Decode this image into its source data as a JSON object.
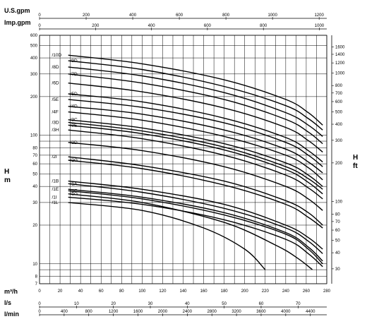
{
  "chart_data": {
    "type": "line",
    "title": "",
    "x_axes": {
      "usgpm": {
        "unit": "U.S.gpm",
        "ticks": [
          0,
          200,
          400,
          600,
          800,
          1000,
          1200
        ]
      },
      "impgpm": {
        "unit": "Imp.gpm",
        "ticks": [
          0,
          200,
          400,
          600,
          800,
          1000
        ]
      },
      "m3h": {
        "unit": "m³/h",
        "ticks": [
          0,
          20,
          40,
          60,
          80,
          100,
          120,
          140,
          160,
          180,
          200,
          220,
          240,
          260,
          280
        ],
        "range": [
          0,
          280
        ]
      },
      "ls": {
        "unit": "l/s",
        "ticks": [
          0,
          10,
          20,
          30,
          40,
          50,
          60,
          70
        ]
      },
      "lmin": {
        "unit": "l/min",
        "ticks": [
          0,
          400,
          800,
          1200,
          1600,
          2000,
          2400,
          2800,
          3200,
          3600,
          4000,
          4400
        ]
      }
    },
    "y_left": {
      "label": "H",
      "unit": "m",
      "scale": "log",
      "range": [
        7,
        600
      ],
      "ticks": [
        7,
        8,
        10,
        20,
        30,
        40,
        50,
        60,
        70,
        80,
        100,
        200,
        300,
        400,
        500,
        600
      ]
    },
    "y_right": {
      "label": "H",
      "unit": "ft",
      "scale": "log",
      "ticks": [
        30,
        40,
        50,
        60,
        70,
        80,
        100,
        200,
        300,
        400,
        500,
        600,
        700,
        800,
        1000,
        1200,
        1400,
        1600
      ]
    },
    "grid": true,
    "series": [
      {
        "name": "/10D",
        "x": [
          28,
          100,
          180,
          240,
          262,
          276
        ],
        "y": [
          420,
          360,
          270,
          190,
          150,
          120
        ]
      },
      {
        "name": "/9D",
        "x": [
          28,
          100,
          180,
          240,
          262,
          276
        ],
        "y": [
          380,
          325,
          240,
          170,
          135,
          110
        ]
      },
      {
        "name": "/8D",
        "x": [
          28,
          100,
          180,
          240,
          262,
          276
        ],
        "y": [
          340,
          290,
          215,
          150,
          120,
          98
        ]
      },
      {
        "name": "/7D",
        "x": [
          28,
          100,
          180,
          240,
          262,
          276
        ],
        "y": [
          300,
          255,
          190,
          133,
          106,
          86
        ]
      },
      {
        "name": "/6D",
        "x": [
          28,
          100,
          180,
          240,
          262,
          276
        ],
        "y": [
          255,
          218,
          163,
          115,
          91,
          74
        ]
      },
      {
        "name": "/5D",
        "x": [
          28,
          100,
          180,
          240,
          262,
          276
        ],
        "y": [
          210,
          182,
          136,
          96,
          76,
          62
        ]
      },
      {
        "name": "/5E",
        "x": [
          28,
          100,
          180,
          240,
          262,
          276
        ],
        "y": [
          190,
          165,
          125,
          88,
          70,
          57
        ]
      },
      {
        "name": "/4D",
        "x": [
          28,
          100,
          180,
          240,
          262,
          276
        ],
        "y": [
          168,
          146,
          110,
          78,
          62,
          51
        ]
      },
      {
        "name": "/4F",
        "x": [
          28,
          100,
          180,
          240,
          262,
          276
        ],
        "y": [
          152,
          131,
          98,
          70,
          56,
          45
        ]
      },
      {
        "name": "/3C",
        "x": [
          28,
          100,
          180,
          240,
          262,
          276
        ],
        "y": [
          132,
          114,
          86,
          61,
          49,
          40
        ]
      },
      {
        "name": "/3D",
        "x": [
          28,
          100,
          180,
          240,
          262,
          276
        ],
        "y": [
          126,
          108,
          81,
          57,
          46,
          38
        ]
      },
      {
        "name": "/3E",
        "x": [
          28,
          100,
          180,
          240,
          262,
          276
        ],
        "y": [
          120,
          103,
          77,
          54,
          43,
          35
        ]
      },
      {
        "name": "/3H",
        "x": [
          28,
          100,
          180,
          240,
          262,
          276
        ],
        "y": [
          110,
          94,
          70,
          49,
          39,
          32
        ]
      },
      {
        "name": "/2D",
        "x": [
          28,
          100,
          180,
          240,
          262,
          276
        ],
        "y": [
          88,
          76,
          57,
          40,
          32,
          26
        ]
      },
      {
        "name": "/2I",
        "x": [
          28,
          100,
          180,
          240,
          262,
          276
        ],
        "y": [
          68,
          58,
          44,
          31,
          25,
          20
        ]
      },
      {
        "name": "/2G",
        "x": [
          28,
          100,
          180,
          240,
          262,
          276
        ],
        "y": [
          64,
          55,
          41,
          29,
          23,
          19
        ]
      },
      {
        "name": "/1B",
        "x": [
          28,
          100,
          180,
          240,
          262,
          276
        ],
        "y": [
          44,
          38,
          29,
          20,
          16,
          13
        ]
      },
      {
        "name": "/1A",
        "x": [
          28,
          100,
          180,
          240,
          262,
          276
        ],
        "y": [
          42,
          36,
          27,
          19,
          15,
          12
        ]
      },
      {
        "name": "/1E",
        "x": [
          28,
          100,
          180,
          240,
          262,
          276
        ],
        "y": [
          38,
          33,
          25,
          17.5,
          13.5,
          10.5
        ]
      },
      {
        "name": "/1C",
        "x": [
          28,
          100,
          180,
          240,
          262,
          276
        ],
        "y": [
          37,
          32,
          24,
          17,
          13,
          10
        ]
      },
      {
        "name": "/1I",
        "x": [
          28,
          100,
          180,
          240,
          262,
          276
        ],
        "y": [
          33,
          29,
          22,
          15.5,
          12,
          9.5
        ]
      },
      {
        "name": "/1G",
        "x": [
          28,
          100,
          180,
          230,
          252,
          266
        ],
        "y": [
          35,
          30,
          21,
          14,
          11,
          9
        ]
      },
      {
        "name": "/1L",
        "x": [
          28,
          100,
          160,
          200,
          220
        ],
        "y": [
          30,
          26,
          19,
          13,
          9
        ]
      }
    ]
  }
}
